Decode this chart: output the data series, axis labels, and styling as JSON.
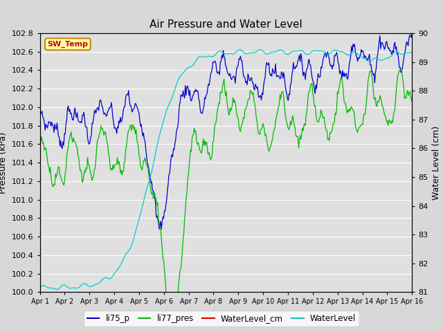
{
  "title": "Air Pressure and Water Level",
  "ylabel_left": "Pressure (kPa)",
  "ylabel_right": "Water Level (cm)",
  "ylim_left": [
    100.0,
    102.8
  ],
  "ylim_right": [
    81.0,
    90.0
  ],
  "yticks_left": [
    100.0,
    100.2,
    100.4,
    100.6,
    100.8,
    101.0,
    101.2,
    101.4,
    101.6,
    101.8,
    102.0,
    102.2,
    102.4,
    102.6,
    102.8
  ],
  "yticks_right": [
    81.0,
    82.0,
    83.0,
    84.0,
    85.0,
    86.0,
    87.0,
    88.0,
    89.0,
    90.0
  ],
  "xtick_labels": [
    "Apr 1",
    "Apr 2",
    "Apr 3",
    "Apr 4",
    "Apr 5",
    "Apr 6",
    "Apr 7",
    "Apr 8",
    "Apr 9",
    "Apr 10",
    "Apr 11",
    "Apr 12",
    "Apr 13",
    "Apr 14",
    "Apr 15",
    "Apr 16"
  ],
  "color_li75p": "#0000cc",
  "color_li77pres": "#00bb00",
  "color_waterlevel_cm": "#cc0000",
  "color_waterlevel": "#00cccc",
  "bg_color": "#d8d8d8",
  "plot_bg_color": "#e0e0e0",
  "sw_temp_bg": "#ffffaa",
  "sw_temp_border": "#cc8800",
  "sw_temp_text": "#cc0000",
  "legend_labels": [
    "li75_p",
    "li77_pres",
    "WaterLevel_cm",
    "WaterLevel"
  ],
  "grid_color": "#ffffff",
  "title_fontsize": 11,
  "label_fontsize": 9,
  "tick_fontsize": 8
}
